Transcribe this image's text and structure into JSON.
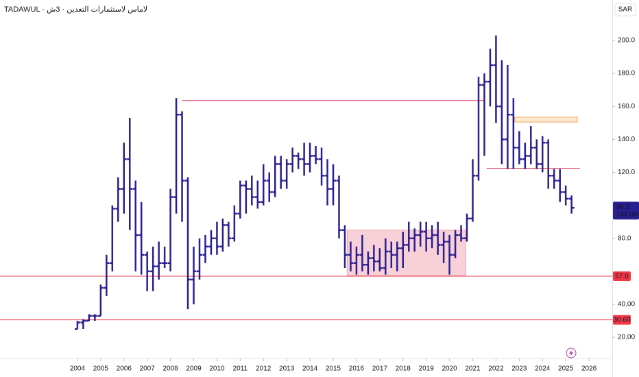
{
  "chart_data": {
    "type": "ohlc",
    "title": "TADAWUL · لاماس لاستثمارات التعدين · 3ش",
    "currency": "SAR",
    "x": [
      2004,
      2004.25,
      2004.5,
      2004.75,
      2005,
      2005.25,
      2005.5,
      2005.75,
      2006,
      2006.25,
      2006.5,
      2006.75,
      2007,
      2007.25,
      2007.5,
      2007.75,
      2008,
      2008.25,
      2008.5,
      2008.75,
      2009,
      2009.25,
      2009.5,
      2009.75,
      2010,
      2010.25,
      2010.5,
      2010.75,
      2011,
      2011.25,
      2011.5,
      2011.75,
      2012,
      2012.25,
      2012.5,
      2012.75,
      2013,
      2013.25,
      2013.5,
      2013.75,
      2014,
      2014.25,
      2014.5,
      2014.75,
      2015,
      2015.25,
      2015.5,
      2015.75,
      2016,
      2016.25,
      2016.5,
      2016.75,
      2017,
      2017.25,
      2017.5,
      2017.75,
      2018,
      2018.25,
      2018.5,
      2018.75,
      2019,
      2019.25,
      2019.5,
      2019.75,
      2020,
      2020.25,
      2020.5,
      2020.75,
      2021,
      2021.25,
      2021.5,
      2021.75,
      2022,
      2022.25,
      2022.5,
      2022.75,
      2023,
      2023.25,
      2023.5,
      2023.75,
      2024,
      2024.25,
      2024.5,
      2024.75,
      2025,
      2025.25
    ],
    "series": [
      {
        "color": "#2a1f8f",
        "open": [
          25,
          29,
          30,
          33,
          33,
          50,
          65,
          98,
          110,
          128,
          110,
          82,
          70,
          60,
          63,
          65,
          65,
          105,
          155,
          115,
          55,
          60,
          70,
          75,
          80,
          75,
          88,
          80,
          95,
          112,
          110,
          105,
          102,
          115,
          108,
          125,
          115,
          125,
          130,
          128,
          125,
          130,
          128,
          118,
          110,
          115,
          85,
          70,
          65,
          70,
          64,
          68,
          66,
          62,
          72,
          70,
          74,
          76,
          80,
          82,
          84,
          80,
          82,
          76,
          78,
          70,
          82,
          80,
          92,
          118,
          173,
          175,
          185,
          160,
          140,
          155,
          135,
          128,
          130,
          135,
          125,
          138,
          118,
          115,
          108,
          104
        ],
        "high": [
          30,
          31,
          34,
          34,
          52,
          70,
          100,
          117,
          138,
          153,
          115,
          102,
          72,
          75,
          78,
          75,
          110,
          165,
          157,
          117,
          75,
          80,
          82,
          85,
          90,
          92,
          90,
          100,
          115,
          115,
          118,
          115,
          125,
          120,
          130,
          130,
          128,
          135,
          132,
          138,
          138,
          136,
          135,
          128,
          125,
          118,
          88,
          78,
          75,
          82,
          72,
          76,
          74,
          80,
          78,
          78,
          84,
          90,
          86,
          90,
          90,
          88,
          90,
          84,
          82,
          85,
          88,
          95,
          128,
          178,
          180,
          195,
          203,
          188,
          185,
          165,
          145,
          138,
          148,
          140,
          142,
          140,
          122,
          122,
          112,
          106
        ],
        "low": [
          25,
          25,
          30,
          30,
          33,
          45,
          60,
          90,
          95,
          85,
          60,
          58,
          48,
          48,
          55,
          62,
          60,
          95,
          90,
          37,
          40,
          55,
          65,
          70,
          70,
          72,
          75,
          78,
          92,
          95,
          100,
          98,
          100,
          102,
          105,
          110,
          110,
          120,
          122,
          118,
          120,
          125,
          112,
          100,
          100,
          80,
          62,
          60,
          58,
          60,
          58,
          60,
          60,
          58,
          62,
          60,
          62,
          72,
          72,
          75,
          72,
          74,
          70,
          65,
          58,
          68,
          78,
          78,
          90,
          115,
          130,
          160,
          150,
          125,
          122,
          122,
          125,
          122,
          125,
          122,
          120,
          110,
          110,
          102,
          100,
          95
        ],
        "close": [
          29,
          30,
          33,
          33,
          50,
          65,
          98,
          110,
          128,
          110,
          82,
          70,
          60,
          63,
          65,
          65,
          105,
          155,
          115,
          55,
          60,
          70,
          75,
          80,
          75,
          88,
          80,
          95,
          112,
          110,
          105,
          102,
          115,
          108,
          125,
          115,
          125,
          130,
          128,
          125,
          130,
          128,
          118,
          110,
          115,
          85,
          70,
          65,
          70,
          64,
          68,
          66,
          62,
          72,
          70,
          74,
          76,
          80,
          82,
          84,
          80,
          82,
          76,
          78,
          70,
          82,
          80,
          92,
          118,
          173,
          175,
          185,
          160,
          140,
          155,
          135,
          128,
          130,
          135,
          125,
          138,
          118,
          115,
          108,
          104,
          98.5
        ]
      }
    ],
    "xlim": [
      2000.67,
      2027.0
    ],
    "xticks": [
      2004,
      2005,
      2006,
      2007,
      2008,
      2009,
      2010,
      2011,
      2012,
      2013,
      2014,
      2015,
      2016,
      2017,
      2018,
      2019,
      2020,
      2021,
      2022,
      2023,
      2024,
      2025,
      2026
    ],
    "ylim": [
      8.4,
      224.5
    ],
    "yticks": [
      {
        "value": 20,
        "label": "20.00"
      },
      {
        "value": 40,
        "label": "40.00"
      },
      {
        "value": 80,
        "label": "80.0"
      },
      {
        "value": 120,
        "label": "120.0"
      },
      {
        "value": 140,
        "label": "140.0"
      },
      {
        "value": 160,
        "label": "160.0"
      },
      {
        "value": 180,
        "label": "180.0"
      },
      {
        "value": 200,
        "label": "200.0"
      }
    ],
    "levels": [
      {
        "value": 163.5,
        "x": [
          2008.5,
          2021.5
        ],
        "color": "#e0456a"
      },
      {
        "value": 122.5,
        "x": [
          2021.6,
          2025.6
        ],
        "color": "#e0456a"
      },
      {
        "value": 57.0,
        "label": "57.0",
        "color": "#f23645"
      },
      {
        "value": 30.6,
        "label": "30.60",
        "color": "#f23645"
      }
    ],
    "zones": [
      {
        "x": [
          2015.6,
          2020.7
        ],
        "y": [
          57.5,
          85
        ],
        "color": "#f6c6ce",
        "border": "#e8a0ac"
      },
      {
        "x": [
          2022.8,
          2025.5
        ],
        "y": [
          150.5,
          153.5
        ],
        "color": "#fbe3c2",
        "border": "#f0a860"
      }
    ],
    "price_label": {
      "value": 98.5,
      "label": "98.5",
      "countdown": "18d 15h",
      "color": "#2a1f8f"
    }
  }
}
